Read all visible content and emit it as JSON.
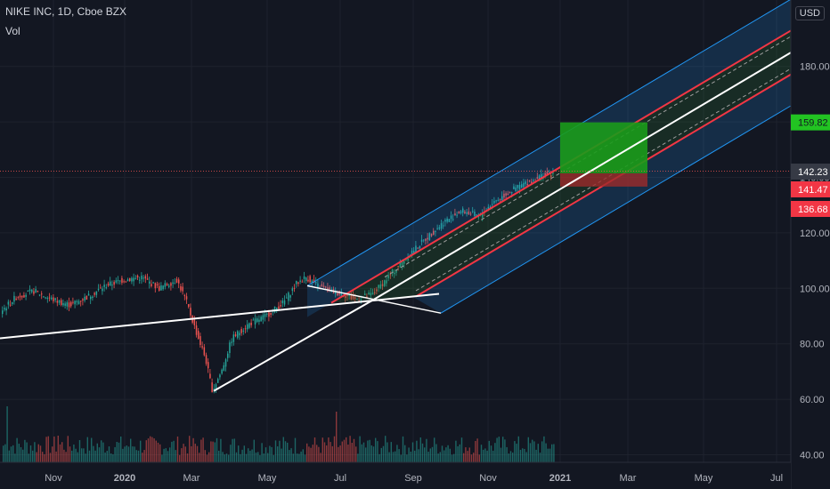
{
  "header": {
    "title": "NIKE INC, 1D, Cboe BZX",
    "volume_label": "Vol"
  },
  "currency_button": "USD",
  "colors": {
    "background": "#131722",
    "up": "#26a69a",
    "down": "#ef5350",
    "grid": "#1e222d",
    "fork_blue": "#2196f3",
    "fork_red": "#f23645",
    "target_zone": "#1b9b1b",
    "stop_zone": "#9c2a2a",
    "price_badge_green": "#22c322",
    "price_badge_red": "#f23645",
    "price_badge_gray": "#363a45"
  },
  "chart_data": {
    "type": "candlestick",
    "symbol": "NIKE INC",
    "interval": "1D",
    "exchange": "Cboe BZX",
    "x_ticks": [
      "Nov",
      "2020",
      "Mar",
      "May",
      "Jul",
      "Sep",
      "Nov",
      "2021",
      "Mar",
      "May",
      "Jul"
    ],
    "y_ticks": [
      40,
      60,
      80,
      100,
      120,
      140,
      160,
      180
    ],
    "y_tick_labels": [
      "40.00",
      "60.00",
      "80.00",
      "100.00",
      "120.00",
      "140.00",
      "160.00",
      "180.00"
    ],
    "ylim": [
      38,
      200
    ],
    "price_path": [
      [
        0,
        91
      ],
      [
        20,
        97
      ],
      [
        40,
        99
      ],
      [
        60,
        96
      ],
      [
        80,
        94
      ],
      [
        100,
        97
      ],
      [
        120,
        101
      ],
      [
        140,
        103
      ],
      [
        160,
        104
      ],
      [
        180,
        100
      ],
      [
        200,
        103
      ],
      [
        210,
        96
      ],
      [
        222,
        84
      ],
      [
        232,
        75
      ],
      [
        240,
        63
      ],
      [
        250,
        70
      ],
      [
        262,
        82
      ],
      [
        280,
        87
      ],
      [
        300,
        90
      ],
      [
        320,
        95
      ],
      [
        335,
        102
      ],
      [
        345,
        104
      ],
      [
        358,
        101
      ],
      [
        372,
        99
      ],
      [
        386,
        98
      ],
      [
        400,
        96
      ],
      [
        420,
        98
      ],
      [
        440,
        105
      ],
      [
        460,
        112
      ],
      [
        480,
        118
      ],
      [
        500,
        124
      ],
      [
        520,
        128
      ],
      [
        540,
        126
      ],
      [
        555,
        131
      ],
      [
        570,
        134
      ],
      [
        585,
        137
      ],
      [
        600,
        139
      ],
      [
        612,
        141
      ],
      [
        622,
        141
      ]
    ],
    "current_price": "142.23",
    "price_badges": [
      {
        "label": "159.82",
        "value": 159.82,
        "kind": "target"
      },
      {
        "label": "142.23",
        "value": 142.23,
        "kind": "last"
      },
      {
        "label": "141.47",
        "value": 141.47,
        "kind": "entry"
      },
      {
        "label": "136.68",
        "value": 136.68,
        "kind": "stop"
      }
    ],
    "position_tool": {
      "target": 159.82,
      "entry": 141.47,
      "stop": 136.68
    },
    "trendlines": [
      {
        "name": "support-line",
        "points": [
          [
            0,
            82
          ],
          [
            493,
            98
          ]
        ]
      },
      {
        "name": "fork-handle",
        "points": [
          [
            240,
            63
          ],
          [
            420,
            96
          ]
        ]
      }
    ],
    "pitchfork": {
      "median_start": [
        420,
        96
      ],
      "median_end": [
        888,
        185
      ],
      "outer_offset": 12.7,
      "inner_offset": 7.9,
      "dashed_offset": 5.8,
      "blue_start": 345,
      "red_start": 372,
      "band_end": 888
    },
    "volume": {
      "ymax": 80,
      "spikes": [
        [
          7,
          42
        ],
        [
          65,
          20
        ],
        [
          127,
          32
        ],
        [
          217,
          36
        ],
        [
          235,
          61
        ],
        [
          240,
          48
        ],
        [
          377,
          38
        ],
        [
          493,
          80
        ],
        [
          614,
          35
        ]
      ]
    },
    "annotation_note": "no annotations"
  }
}
